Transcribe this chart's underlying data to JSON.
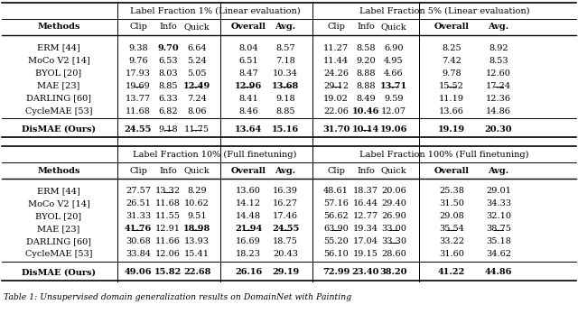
{
  "title_caption": "Table 1: Unsupervised domain generalization results on DomainNet with Painting",
  "section1_header": "Label Fraction 1% (Linear evaluation)",
  "section2_header": "Label Fraction 5% (Linear evaluation)",
  "section3_header": "Label Fraction 10% (Full finetuning)",
  "section4_header": "Label Fraction 100% (Full finetuning)",
  "top_methods": [
    "ERM [44]",
    "MoCo V2 [14]",
    "BYOL [20]",
    "MAE [23]",
    "DARLING [60]",
    "CycleMAE [53]"
  ],
  "top_ours": "DisMAE (Ours)",
  "bottom_methods": [
    "ERM [44]",
    "MoCo V2 [14]",
    "BYOL [20]",
    "MAE [23]",
    "DARLING [60]",
    "CycleMAE [53]"
  ],
  "bottom_ours": "DisMAE (Ours)",
  "top_data": [
    [
      "9.38",
      "9.70",
      "6.64",
      "8.04",
      "8.57",
      "11.27",
      "8.58",
      "6.90",
      "8.25",
      "8.92"
    ],
    [
      "9.76",
      "6.53",
      "5.24",
      "6.51",
      "7.18",
      "11.44",
      "9.20",
      "4.95",
      "7.42",
      "8.53"
    ],
    [
      "17.93",
      "8.03",
      "5.05",
      "8.47",
      "10.34",
      "24.26",
      "8.88",
      "4.66",
      "9.78",
      "12.60"
    ],
    [
      "19.69",
      "8.85",
      "12.49",
      "12.96",
      "13.68",
      "29.12",
      "8.88",
      "13.71",
      "15.52",
      "17.24"
    ],
    [
      "13.77",
      "6.33",
      "7.24",
      "8.41",
      "9.18",
      "19.02",
      "8.49",
      "9.59",
      "11.19",
      "12.36"
    ],
    [
      "11.68",
      "6.82",
      "8.06",
      "8.46",
      "8.85",
      "22.06",
      "10.46",
      "12.07",
      "13.66",
      "14.86"
    ]
  ],
  "top_ours_data": [
    "24.55",
    "9.18",
    "11.75",
    "13.64",
    "15.16",
    "31.70",
    "10.14",
    "19.06",
    "19.19",
    "20.30"
  ],
  "bottom_data": [
    [
      "27.57",
      "13.32",
      "8.29",
      "13.60",
      "16.39",
      "48.61",
      "18.37",
      "20.06",
      "25.38",
      "29.01"
    ],
    [
      "26.51",
      "11.68",
      "10.62",
      "14.12",
      "16.27",
      "57.16",
      "16.44",
      "29.40",
      "31.50",
      "34.33"
    ],
    [
      "31.33",
      "11.55",
      "9.51",
      "14.48",
      "17.46",
      "56.62",
      "12.77",
      "26.90",
      "29.08",
      "32.10"
    ],
    [
      "41.76",
      "12.91",
      "18.98",
      "21.94",
      "24.55",
      "63.90",
      "19.34",
      "33.00",
      "35.54",
      "38.75"
    ],
    [
      "30.68",
      "11.66",
      "13.93",
      "16.69",
      "18.75",
      "55.20",
      "17.04",
      "33.30",
      "33.22",
      "35.18"
    ],
    [
      "33.84",
      "12.06",
      "15.41",
      "18.23",
      "20.43",
      "56.10",
      "19.15",
      "28.60",
      "31.60",
      "34.62"
    ]
  ],
  "bottom_ours_data": [
    "49.06",
    "15.82",
    "22.68",
    "26.16",
    "29.19",
    "72.99",
    "23.40",
    "38.20",
    "41.22",
    "44.86"
  ],
  "top_bold": {
    "0": [
      1
    ],
    "3": [
      2,
      3,
      4,
      7
    ],
    "5": [
      6
    ],
    "ours": [
      0,
      3,
      4,
      5,
      6,
      7,
      8,
      9
    ]
  },
  "top_ul": {
    "3": [
      0,
      2,
      3,
      4,
      5,
      7,
      8,
      9
    ],
    "ours": [
      1,
      2,
      6
    ]
  },
  "bottom_bold": {
    "3": [
      0,
      2,
      3,
      4
    ],
    "ours": [
      0,
      1,
      2,
      3,
      4,
      5,
      6,
      7,
      8,
      9
    ]
  },
  "bottom_ul": {
    "0": [
      1
    ],
    "3": [
      0,
      2,
      3,
      4,
      5,
      7,
      8,
      9
    ],
    "4": [
      7
    ]
  },
  "bg_color": "#ffffff",
  "font_size": 7.0
}
